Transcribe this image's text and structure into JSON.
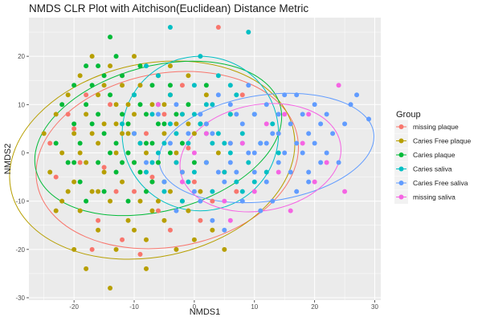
{
  "chart_data": {
    "type": "scatter",
    "title": "NMDS CLR Plot with Aitchison(Euclidean) Distance Metric",
    "xlabel": "NMDS1",
    "ylabel": "NMDS2",
    "xlim": [
      -27.5,
      31
    ],
    "ylim": [
      -30.5,
      28
    ],
    "x_ticks": [
      -20,
      -10,
      0,
      10,
      20,
      30
    ],
    "y_ticks": [
      -30,
      -20,
      -10,
      0,
      10,
      20
    ],
    "grid": true,
    "panel_background": "#ebebeb",
    "legend": {
      "title": "Group",
      "position": "right",
      "entries": [
        {
          "label": "missing plaque",
          "color": "#F8766D"
        },
        {
          "label": "Caries Free plaque",
          "color": "#B79F00"
        },
        {
          "label": "Caries plaque",
          "color": "#00BA38"
        },
        {
          "label": "Caries saliva",
          "color": "#00BFC4"
        },
        {
          "label": "Caries Free saliva",
          "color": "#619CFF"
        },
        {
          "label": "missing saliva",
          "color": "#F564E3"
        }
      ]
    },
    "series": [
      {
        "name": "missing plaque",
        "color": "#F8766D",
        "ellipse": {
          "cx": -4.5,
          "cy": -1.5,
          "rx": 22,
          "ry": 18,
          "angle": -10
        },
        "points": [
          [
            -24,
            2
          ],
          [
            -20,
            5
          ],
          [
            -18,
            12
          ],
          [
            -15,
            -3
          ],
          [
            -14,
            10
          ],
          [
            -12,
            16
          ],
          [
            -10,
            -8
          ],
          [
            -8,
            4
          ],
          [
            -6,
            -12
          ],
          [
            -5,
            8
          ],
          [
            -3,
            -2
          ],
          [
            -2,
            14
          ],
          [
            0,
            -6
          ],
          [
            2,
            6
          ],
          [
            3,
            -10
          ],
          [
            4,
            26
          ],
          [
            5,
            -4
          ],
          [
            6,
            2
          ],
          [
            -16,
            -14
          ],
          [
            -12,
            -18
          ],
          [
            -9,
            -21
          ],
          [
            -7,
            -5
          ],
          [
            -11,
            6
          ],
          [
            -19,
            -2
          ],
          [
            -4,
            -16
          ],
          [
            1,
            -14
          ],
          [
            7,
            -8
          ],
          [
            -21,
            8
          ],
          [
            -13,
            -8
          ],
          [
            -1,
            1
          ],
          [
            8,
            12
          ],
          [
            -23,
            -5
          ],
          [
            -17,
            -20
          ]
        ]
      },
      {
        "name": "Caries Free plaque",
        "color": "#B79F00",
        "ellipse": {
          "cx": -7,
          "cy": -1.5,
          "rx": 24,
          "ry": 20,
          "angle": -12
        },
        "points": [
          [
            -25,
            4
          ],
          [
            -24,
            -4
          ],
          [
            -23,
            8
          ],
          [
            -22,
            0
          ],
          [
            -22,
            -10
          ],
          [
            -21,
            12
          ],
          [
            -20,
            -6
          ],
          [
            -20,
            4
          ],
          [
            -19,
            16
          ],
          [
            -19,
            -12
          ],
          [
            -18,
            8
          ],
          [
            -18,
            -2
          ],
          [
            -17,
            20
          ],
          [
            -17,
            -8
          ],
          [
            -16,
            12
          ],
          [
            -16,
            2
          ],
          [
            -16,
            -16
          ],
          [
            -15,
            6
          ],
          [
            -15,
            -4
          ],
          [
            -14,
            18
          ],
          [
            -14,
            -10
          ],
          [
            -13,
            10
          ],
          [
            -13,
            0
          ],
          [
            -13,
            -20
          ],
          [
            -12,
            14
          ],
          [
            -12,
            -6
          ],
          [
            -11,
            4
          ],
          [
            -11,
            -14
          ],
          [
            -10,
            20
          ],
          [
            -10,
            8
          ],
          [
            -10,
            -2
          ],
          [
            -9,
            -10
          ],
          [
            -9,
            14
          ],
          [
            -8,
            0
          ],
          [
            -8,
            -18
          ],
          [
            -7,
            10
          ],
          [
            -7,
            -6
          ],
          [
            -6,
            16
          ],
          [
            -6,
            -2
          ],
          [
            -5,
            4
          ],
          [
            -5,
            -14
          ],
          [
            -4,
            12
          ],
          [
            -4,
            -8
          ],
          [
            -3,
            0
          ],
          [
            -3,
            -20
          ],
          [
            -2,
            8
          ],
          [
            -2,
            -4
          ],
          [
            -1,
            16
          ],
          [
            -1,
            -12
          ],
          [
            0,
            4
          ],
          [
            0,
            -18
          ],
          [
            1,
            -8
          ],
          [
            2,
            12
          ],
          [
            3,
            -16
          ],
          [
            4,
            0
          ],
          [
            5,
            -20
          ],
          [
            6,
            8
          ],
          [
            -14,
            -28
          ],
          [
            -20,
            -20
          ],
          [
            -23,
            -12
          ],
          [
            -18,
            -24
          ],
          [
            -8,
            -24
          ],
          [
            -12,
            4
          ],
          [
            -10,
            -16
          ],
          [
            -15,
            14
          ],
          [
            -6,
            -10
          ],
          [
            -4,
            18
          ],
          [
            -16,
            -8
          ],
          [
            -11,
            10
          ],
          [
            -9,
            2
          ],
          [
            -7,
            -12
          ],
          [
            -2,
            -10
          ],
          [
            2,
            -2
          ],
          [
            -1,
            6
          ],
          [
            -17,
            4
          ],
          [
            -13,
            6
          ],
          [
            -19,
            0
          ],
          [
            -21,
            -8
          ],
          [
            -5,
            10
          ],
          [
            -3,
            6
          ]
        ]
      },
      {
        "name": "Caries plaque",
        "color": "#00BA38",
        "ellipse": {
          "cx": -6,
          "cy": 3,
          "rx": 21,
          "ry": 15,
          "angle": -15
        },
        "points": [
          [
            -23,
            2
          ],
          [
            -22,
            10
          ],
          [
            -21,
            -2
          ],
          [
            -20,
            6
          ],
          [
            -20,
            14
          ],
          [
            -19,
            -6
          ],
          [
            -19,
            2
          ],
          [
            -18,
            10
          ],
          [
            -18,
            -10
          ],
          [
            -17,
            6
          ],
          [
            -17,
            14
          ],
          [
            -16,
            -2
          ],
          [
            -16,
            18
          ],
          [
            -15,
            4
          ],
          [
            -15,
            -8
          ],
          [
            -14,
            12
          ],
          [
            -14,
            0
          ],
          [
            -13,
            20
          ],
          [
            -13,
            -4
          ],
          [
            -12,
            8
          ],
          [
            -12,
            16
          ],
          [
            -11,
            0
          ],
          [
            -11,
            -10
          ],
          [
            -10,
            12
          ],
          [
            -10,
            4
          ],
          [
            -9,
            -4
          ],
          [
            -9,
            18
          ],
          [
            -8,
            8
          ],
          [
            -8,
            -8
          ],
          [
            -7,
            14
          ],
          [
            -7,
            2
          ],
          [
            -6,
            -2
          ],
          [
            -6,
            10
          ],
          [
            -5,
            6
          ],
          [
            -5,
            -6
          ],
          [
            -4,
            0
          ],
          [
            -4,
            14
          ],
          [
            -3,
            8
          ],
          [
            -2,
            2
          ],
          [
            -1,
            10
          ],
          [
            0,
            -2
          ],
          [
            1,
            6
          ],
          [
            2,
            14
          ],
          [
            -14,
            24
          ],
          [
            -18,
            18
          ],
          [
            -15,
            16
          ],
          [
            -11,
            6
          ],
          [
            -9,
            10
          ],
          [
            -7,
            -6
          ],
          [
            -12,
            -2
          ],
          [
            -16,
            8
          ],
          [
            -20,
            -2
          ],
          [
            -13,
            2
          ],
          [
            -10,
            -2
          ],
          [
            -8,
            2
          ],
          [
            -6,
            6
          ]
        ]
      },
      {
        "name": "Caries saliva",
        "color": "#00BFC4",
        "ellipse": {
          "cx": 1,
          "cy": 4,
          "rx": 13,
          "ry": 16,
          "angle": -5
        },
        "points": [
          [
            -12,
            6
          ],
          [
            -10,
            12
          ],
          [
            -9,
            2
          ],
          [
            -8,
            -4
          ],
          [
            -7,
            8
          ],
          [
            -6,
            16
          ],
          [
            -6,
            0
          ],
          [
            -5,
            -8
          ],
          [
            -4,
            6
          ],
          [
            -4,
            12
          ],
          [
            -3,
            -2
          ],
          [
            -2,
            8
          ],
          [
            -2,
            -10
          ],
          [
            -1,
            2
          ],
          [
            0,
            14
          ],
          [
            0,
            -4
          ],
          [
            1,
            6
          ],
          [
            1,
            20
          ],
          [
            2,
            -2
          ],
          [
            3,
            10
          ],
          [
            3,
            -8
          ],
          [
            4,
            4
          ],
          [
            4,
            16
          ],
          [
            5,
            -4
          ],
          [
            6,
            8
          ],
          [
            6,
            0
          ],
          [
            7,
            -6
          ],
          [
            7,
            12
          ],
          [
            8,
            4
          ],
          [
            9,
            -2
          ],
          [
            10,
            8
          ],
          [
            11,
            2
          ],
          [
            12,
            -4
          ],
          [
            13,
            6
          ],
          [
            14,
            0
          ],
          [
            -4,
            26
          ],
          [
            9,
            25
          ],
          [
            -8,
            18
          ],
          [
            2,
            4
          ],
          [
            5,
            2
          ],
          [
            -1,
            -6
          ],
          [
            6,
            14
          ],
          [
            8,
            -8
          ],
          [
            -3,
            4
          ],
          [
            0,
            8
          ],
          [
            3,
            2
          ],
          [
            -5,
            2
          ],
          [
            10,
            -6
          ],
          [
            2,
            10
          ],
          [
            -7,
            -2
          ]
        ]
      },
      {
        "name": "Caries Free saliva",
        "color": "#619CFF",
        "ellipse": {
          "cx": 12,
          "cy": 1,
          "rx": 18,
          "ry": 11,
          "angle": -8
        },
        "points": [
          [
            -10,
            4
          ],
          [
            -8,
            -2
          ],
          [
            -6,
            8
          ],
          [
            -5,
            -6
          ],
          [
            -4,
            2
          ],
          [
            -3,
            10
          ],
          [
            -2,
            -4
          ],
          [
            -1,
            4
          ],
          [
            0,
            -8
          ],
          [
            1,
            8
          ],
          [
            2,
            -2
          ],
          [
            3,
            4
          ],
          [
            4,
            12
          ],
          [
            5,
            -6
          ],
          [
            6,
            2
          ],
          [
            6,
            10
          ],
          [
            7,
            -4
          ],
          [
            8,
            6
          ],
          [
            8,
            -10
          ],
          [
            9,
            0
          ],
          [
            10,
            8
          ],
          [
            10,
            -4
          ],
          [
            11,
            2
          ],
          [
            12,
            10
          ],
          [
            12,
            -6
          ],
          [
            13,
            4
          ],
          [
            14,
            -2
          ],
          [
            14,
            8
          ],
          [
            15,
            0
          ],
          [
            16,
            6
          ],
          [
            16,
            -4
          ],
          [
            17,
            2
          ],
          [
            17,
            -8
          ],
          [
            18,
            8
          ],
          [
            18,
            0
          ],
          [
            19,
            4
          ],
          [
            19,
            -4
          ],
          [
            20,
            2
          ],
          [
            20,
            10
          ],
          [
            21,
            -2
          ],
          [
            21,
            6
          ],
          [
            22,
            0
          ],
          [
            23,
            4
          ],
          [
            24,
            -2
          ],
          [
            25,
            6
          ],
          [
            26,
            10
          ],
          [
            27,
            12
          ],
          [
            29,
            7
          ],
          [
            3,
            -14
          ],
          [
            11,
            -12
          ],
          [
            5,
            -16
          ],
          [
            15,
            12
          ],
          [
            9,
            14
          ],
          [
            13,
            -10
          ],
          [
            7,
            8
          ],
          [
            1,
            -10
          ],
          [
            -3,
            -12
          ],
          [
            17,
            12
          ],
          [
            19,
            -6
          ],
          [
            22,
            8
          ],
          [
            12,
            2
          ],
          [
            14,
            4
          ],
          [
            10,
            0
          ],
          [
            8,
            2
          ],
          [
            6,
            -2
          ],
          [
            4,
            -4
          ],
          [
            2,
            6
          ]
        ]
      },
      {
        "name": "missing saliva",
        "color": "#F564E3",
        "ellipse": {
          "cx": 11,
          "cy": -1,
          "rx": 13.5,
          "ry": 11,
          "angle": -10
        },
        "points": [
          [
            -6,
            10
          ],
          [
            -2,
            -6
          ],
          [
            2,
            4
          ],
          [
            5,
            -10
          ],
          [
            8,
            2
          ],
          [
            10,
            -8
          ],
          [
            12,
            6
          ],
          [
            14,
            -4
          ],
          [
            16,
            -12
          ],
          [
            18,
            2
          ],
          [
            20,
            -6
          ],
          [
            22,
            -2
          ],
          [
            24,
            14
          ],
          [
            25,
            -8
          ],
          [
            6,
            -14
          ],
          [
            15,
            8
          ],
          [
            0,
            0
          ],
          [
            19,
            8
          ]
        ]
      }
    ]
  }
}
